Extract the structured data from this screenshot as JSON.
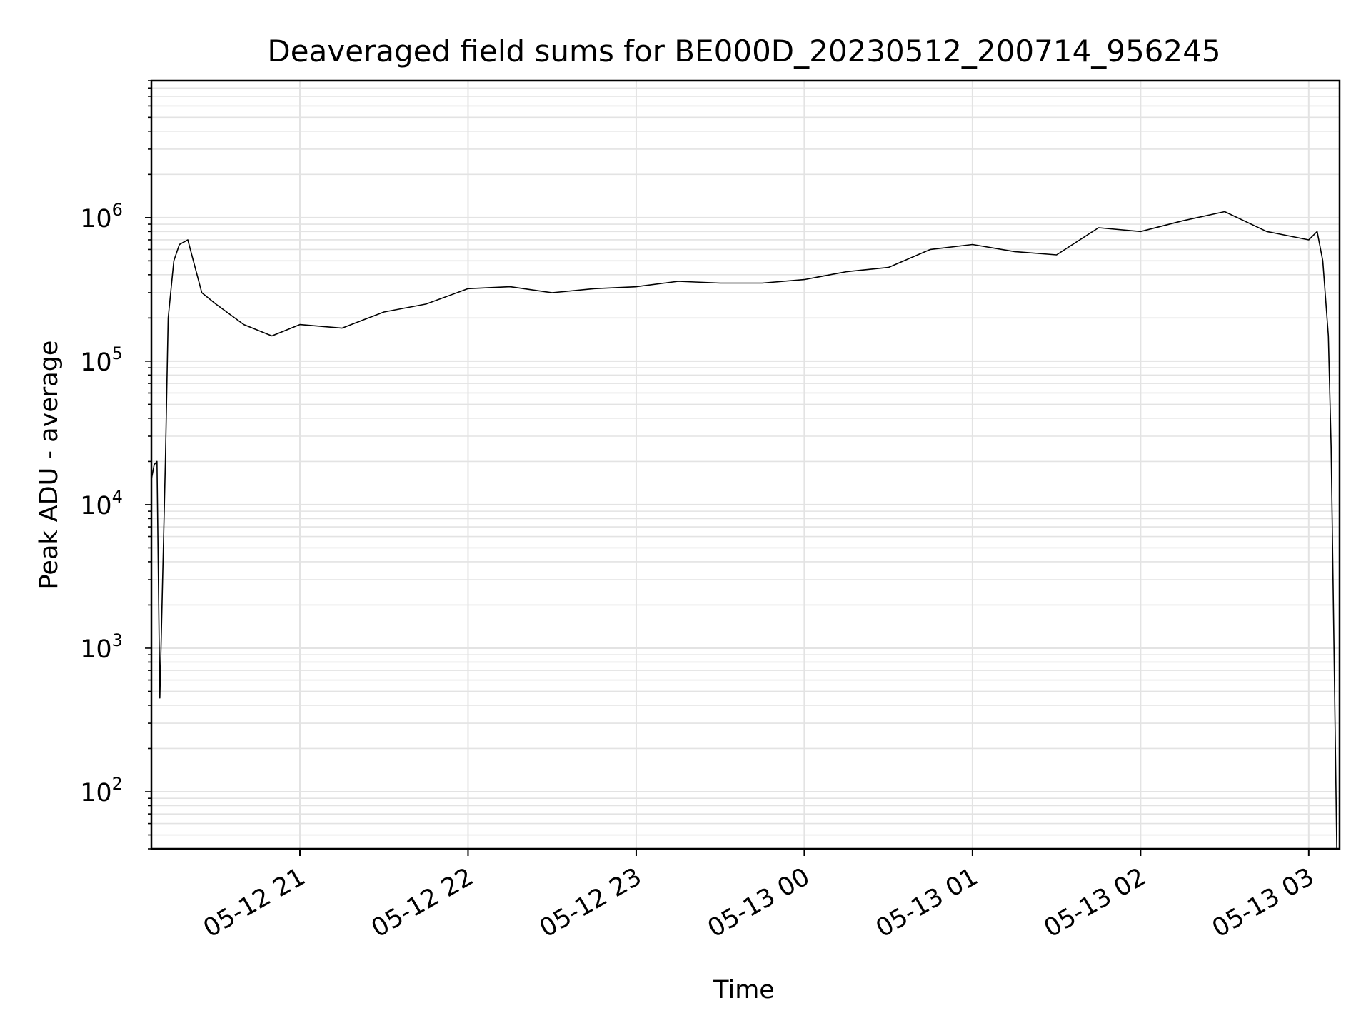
{
  "chart_data": {
    "type": "line",
    "title": "Deaveraged field sums for BE000D_20230512_200714_956245",
    "xlabel": "Time",
    "ylabel": "Peak ADU - average",
    "yscale": "log",
    "ylim": [
      40,
      9000000
    ],
    "xlim": [
      "2023-05-12 20:07",
      "2023-05-13 03:11"
    ],
    "grid": true,
    "x_ticks": [
      "05-12 21",
      "05-12 22",
      "05-12 23",
      "05-13 00",
      "05-13 01",
      "05-13 02",
      "05-13 03"
    ],
    "y_ticks": [
      {
        "base": "10",
        "exp": "2",
        "value": 100
      },
      {
        "base": "10",
        "exp": "3",
        "value": 1000
      },
      {
        "base": "10",
        "exp": "4",
        "value": 10000
      },
      {
        "base": "10",
        "exp": "5",
        "value": 100000
      },
      {
        "base": "10",
        "exp": "6",
        "value": 1000000
      }
    ],
    "series": [
      {
        "color": "#000000",
        "x": [
          "05-12 20:07",
          "05-12 20:08",
          "05-12 20:09",
          "05-12 20:10",
          "05-12 20:11",
          "05-12 20:12",
          "05-12 20:13",
          "05-12 20:15",
          "05-12 20:17",
          "05-12 20:20",
          "05-12 20:25",
          "05-12 20:30",
          "05-12 20:40",
          "05-12 20:50",
          "05-12 21:00",
          "05-12 21:15",
          "05-12 21:30",
          "05-12 21:45",
          "05-12 22:00",
          "05-12 22:15",
          "05-12 22:30",
          "05-12 22:45",
          "05-12 23:00",
          "05-12 23:15",
          "05-12 23:30",
          "05-12 23:45",
          "05-13 00:00",
          "05-13 00:15",
          "05-13 00:30",
          "05-13 00:45",
          "05-13 01:00",
          "05-13 01:15",
          "05-13 01:30",
          "05-13 01:45",
          "05-13 02:00",
          "05-13 02:15",
          "05-13 02:30",
          "05-13 02:45",
          "05-13 03:00",
          "05-13 03:03",
          "05-13 03:05",
          "05-13 03:07",
          "05-13 03:08",
          "05-13 03:09",
          "05-13 03:10",
          "05-13 03:11"
        ],
        "y": [
          15000,
          19000,
          20000,
          450,
          3000,
          20000,
          200000,
          500000,
          650000,
          700000,
          300000,
          250000,
          180000,
          150000,
          180000,
          170000,
          220000,
          250000,
          320000,
          330000,
          300000,
          320000,
          330000,
          360000,
          350000,
          350000,
          370000,
          420000,
          450000,
          600000,
          650000,
          580000,
          550000,
          850000,
          800000,
          950000,
          1100000,
          800000,
          700000,
          800000,
          500000,
          150000,
          25000,
          1000,
          40,
          40
        ]
      }
    ]
  }
}
